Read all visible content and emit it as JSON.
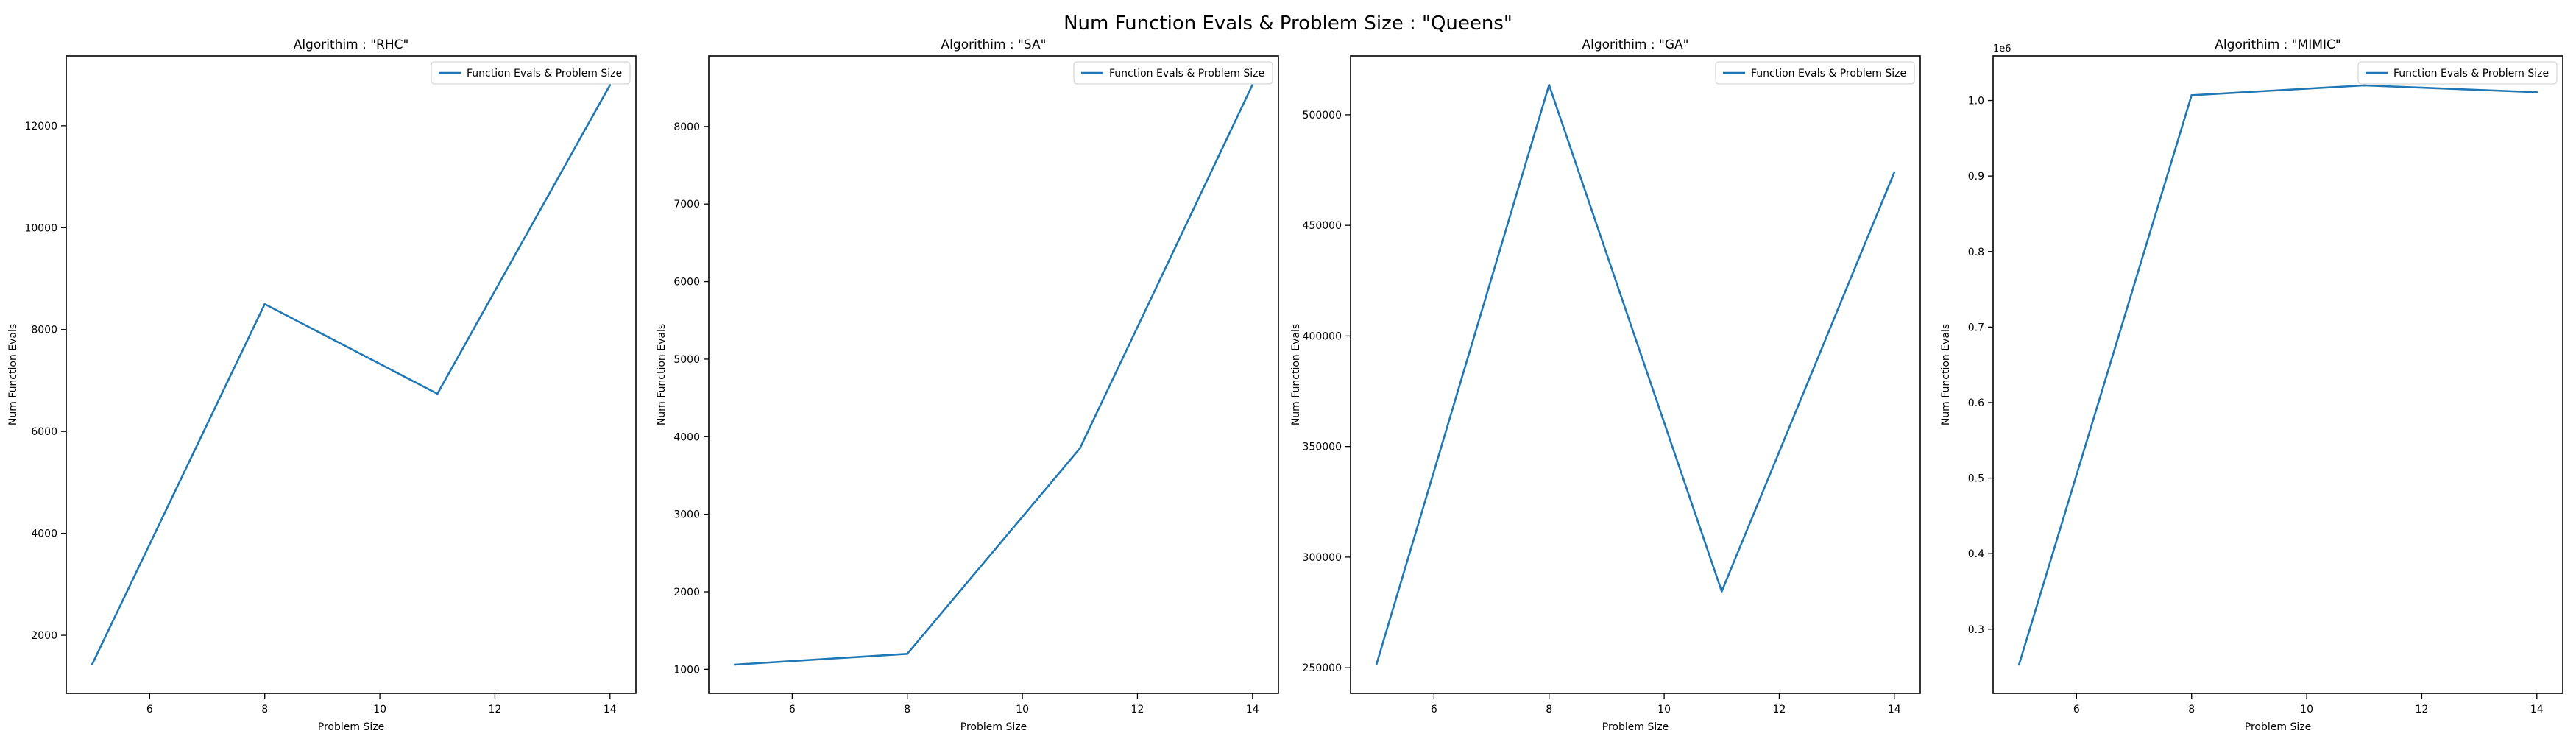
{
  "figure": {
    "title": "Num Function Evals & Problem Size : \"Queens\""
  },
  "colors": {
    "line": "#1f77b4",
    "axes": "#000000",
    "background": "#ffffff"
  },
  "chart_data": [
    {
      "type": "line",
      "title": "Algorithim : \"RHC\"",
      "xlabel": "Problem Size",
      "ylabel": "Num Function Evals",
      "x": [
        5,
        8,
        11,
        14
      ],
      "series": [
        {
          "name": "Function Evals & Problem Size",
          "values": [
            1430,
            8500,
            6740,
            12800
          ]
        }
      ],
      "xlim": [
        4.55,
        14.45
      ],
      "ylim": [
        860,
        13370
      ],
      "xticks": [
        6,
        8,
        10,
        12,
        14
      ],
      "yticks": [
        2000,
        4000,
        6000,
        8000,
        10000,
        12000
      ],
      "ytick_labels": [
        "2000",
        "4000",
        "6000",
        "8000",
        "10000",
        "12000"
      ],
      "offset_text": "",
      "grid": false,
      "legend": "top-right"
    },
    {
      "type": "line",
      "title": "Algorithim : \"SA\"",
      "xlabel": "Problem Size",
      "ylabel": "Num Function Evals",
      "x": [
        5,
        8,
        11,
        14
      ],
      "series": [
        {
          "name": "Function Evals & Problem Size",
          "values": [
            1060,
            1200,
            3850,
            8540
          ]
        }
      ],
      "xlim": [
        4.55,
        14.45
      ],
      "ylim": [
        690,
        8910
      ],
      "xticks": [
        6,
        8,
        10,
        12,
        14
      ],
      "yticks": [
        1000,
        2000,
        3000,
        4000,
        5000,
        6000,
        7000,
        8000
      ],
      "ytick_labels": [
        "1000",
        "2000",
        "3000",
        "4000",
        "5000",
        "6000",
        "7000",
        "8000"
      ],
      "offset_text": "",
      "grid": false,
      "legend": "top-right"
    },
    {
      "type": "line",
      "title": "Algorithim : \"GA\"",
      "xlabel": "Problem Size",
      "ylabel": "Num Function Evals",
      "x": [
        5,
        8,
        11,
        14
      ],
      "series": [
        {
          "name": "Function Evals & Problem Size",
          "values": [
            251500,
            513500,
            284500,
            474000
          ]
        }
      ],
      "xlim": [
        4.55,
        14.45
      ],
      "ylim": [
        238400,
        526600
      ],
      "xticks": [
        6,
        8,
        10,
        12,
        14
      ],
      "yticks": [
        250000,
        300000,
        350000,
        400000,
        450000,
        500000
      ],
      "ytick_labels": [
        "250000",
        "300000",
        "350000",
        "400000",
        "450000",
        "500000"
      ],
      "offset_text": "",
      "grid": false,
      "legend": "top-right"
    },
    {
      "type": "line",
      "title": "Algorithim : \"MIMIC\"",
      "xlabel": "Problem Size",
      "ylabel": "Num Function Evals",
      "x": [
        5,
        8,
        11,
        14
      ],
      "series": [
        {
          "name": "Function Evals & Problem Size",
          "values": [
            253000,
            1007000,
            1020000,
            1011000
          ]
        }
      ],
      "xlim": [
        4.55,
        14.45
      ],
      "ylim": [
        215000,
        1059000
      ],
      "xticks": [
        6,
        8,
        10,
        12,
        14
      ],
      "yticks": [
        300000,
        400000,
        500000,
        600000,
        700000,
        800000,
        900000,
        1000000
      ],
      "ytick_labels": [
        "0.3",
        "0.4",
        "0.5",
        "0.6",
        "0.7",
        "0.8",
        "0.9",
        "1.0"
      ],
      "offset_text": "1e6",
      "grid": false,
      "legend": "top-right"
    }
  ]
}
